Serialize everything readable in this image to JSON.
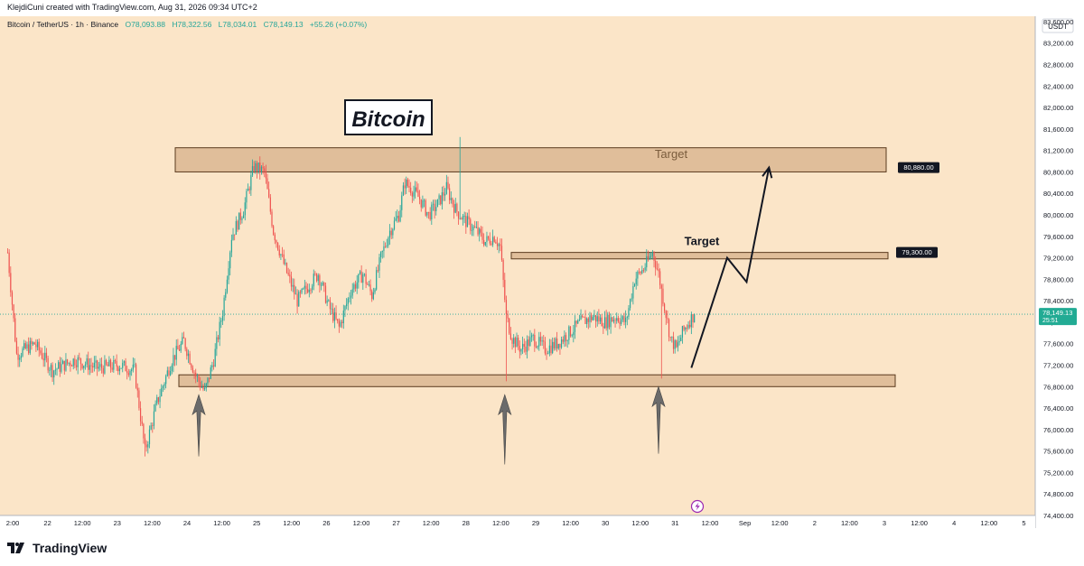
{
  "credit": "KlejdiCuni created with TradingView.com, Aug 31, 2026 09:34 UTC+2",
  "legend": {
    "symbol": "Bitcoin / TetherUS · 1h · Binance",
    "open": "O78,093.88",
    "high": "H78,322.56",
    "low": "L78,034.01",
    "close": "C78,149.13",
    "change": "+55.26 (+0.07%)"
  },
  "currency": "USDT",
  "colors": {
    "background": "#fbe5c8",
    "up": "#26a69a",
    "down": "#ef5350",
    "zone_fill": "#d9b48f",
    "zone_stroke": "#5a3a1e",
    "price_badge": "#22ab94",
    "arrow": "#6b6b6b"
  },
  "chart_data": {
    "type": "candlestick",
    "symbol": "Bitcoin / TetherUS",
    "interval": "1h",
    "exchange": "Binance",
    "y_range": [
      74400,
      83700
    ],
    "y_ticks": [
      74400,
      74800,
      75200,
      75600,
      76000,
      76400,
      76800,
      77200,
      77600,
      78000,
      78400,
      78800,
      79200,
      79600,
      80000,
      80400,
      80800,
      81200,
      81600,
      82000,
      82400,
      82800,
      83200,
      83600
    ],
    "x_ticks": [
      "2:00",
      "22",
      "12:00",
      "23",
      "12:00",
      "24",
      "12:00",
      "25",
      "12:00",
      "26",
      "12:00",
      "27",
      "12:00",
      "28",
      "12:00",
      "29",
      "12:00",
      "30",
      "12:00",
      "31",
      "12:00",
      "Sep",
      "12:00",
      "2",
      "12:00",
      "3",
      "12:00",
      "4",
      "12:00",
      "5"
    ],
    "price_path": [
      [
        0,
        79300
      ],
      [
        6,
        77400
      ],
      [
        18,
        77600
      ],
      [
        30,
        77100
      ],
      [
        45,
        77300
      ],
      [
        60,
        77150
      ],
      [
        75,
        77200
      ],
      [
        85,
        77100
      ],
      [
        92,
        75600
      ],
      [
        100,
        76500
      ],
      [
        110,
        77300
      ],
      [
        118,
        77650
      ],
      [
        126,
        77000
      ],
      [
        132,
        76700
      ],
      [
        138,
        77300
      ],
      [
        144,
        78200
      ],
      [
        150,
        79600
      ],
      [
        158,
        80100
      ],
      [
        165,
        80900
      ],
      [
        172,
        80800
      ],
      [
        178,
        79700
      ],
      [
        186,
        79000
      ],
      [
        194,
        78400
      ],
      [
        202,
        78700
      ],
      [
        208,
        78900
      ],
      [
        215,
        78300
      ],
      [
        222,
        77900
      ],
      [
        230,
        78600
      ],
      [
        238,
        78900
      ],
      [
        244,
        78500
      ],
      [
        250,
        79200
      ],
      [
        256,
        79700
      ],
      [
        262,
        80000
      ],
      [
        266,
        80600
      ],
      [
        270,
        80500
      ],
      [
        276,
        80300
      ],
      [
        282,
        80000
      ],
      [
        288,
        80200
      ],
      [
        294,
        80500
      ],
      [
        300,
        80100
      ],
      [
        306,
        79900
      ],
      [
        314,
        79700
      ],
      [
        320,
        79500
      ],
      [
        326,
        79600
      ],
      [
        330,
        79400
      ],
      [
        334,
        78100
      ],
      [
        338,
        77700
      ],
      [
        344,
        77500
      ],
      [
        352,
        77700
      ],
      [
        360,
        77500
      ],
      [
        368,
        77600
      ],
      [
        376,
        77800
      ],
      [
        384,
        78000
      ],
      [
        392,
        78100
      ],
      [
        400,
        78000
      ],
      [
        408,
        78100
      ],
      [
        414,
        78000
      ],
      [
        420,
        78800
      ],
      [
        426,
        79000
      ],
      [
        432,
        79300
      ],
      [
        436,
        78900
      ],
      [
        440,
        78300
      ],
      [
        444,
        77700
      ],
      [
        448,
        77500
      ],
      [
        452,
        77800
      ],
      [
        456,
        78000
      ],
      [
        460,
        78149
      ]
    ],
    "extra_wicks": [
      [
        303,
        81450
      ],
      [
        334,
        76900
      ],
      [
        438,
        76950
      ],
      [
        92,
        75500
      ]
    ],
    "current_price": "78,149.13",
    "countdown": "25:51",
    "annotations": {
      "title": "Bitcoin",
      "upper_zone": {
        "low": 80800,
        "high": 81250,
        "label": "Target",
        "price_label": "80,880.00",
        "price": 80880
      },
      "mid_zone": {
        "low": 79180,
        "high": 79300,
        "label": "Target",
        "price_label": "79,300.00",
        "price": 79300
      },
      "support_zone": {
        "low": 76800,
        "high": 77020
      },
      "up_arrows": [
        {
          "index": 128,
          "top": 76650,
          "bottom": 75500
        },
        {
          "index": 333,
          "top": 76650,
          "bottom": 75350
        },
        {
          "index": 436,
          "top": 76800,
          "bottom": 75550
        }
      ],
      "projection": [
        [
          458,
          77150
        ],
        [
          482,
          79200
        ],
        [
          495,
          78750
        ],
        [
          510,
          80880
        ]
      ]
    }
  }
}
